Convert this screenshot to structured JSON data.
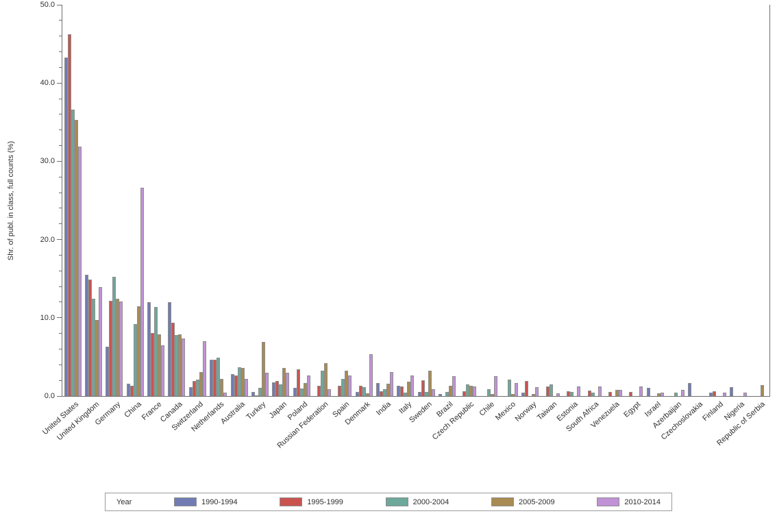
{
  "chart_data": {
    "type": "bar",
    "title": "",
    "xlabel": "",
    "ylabel": "Shr. of publ. in class, full counts (%)",
    "ylim": [
      0,
      50
    ],
    "grid": false,
    "legend_position": "bottom",
    "legend_title": "Year",
    "yticks": {
      "values": [
        0,
        10,
        20,
        30,
        40,
        50
      ],
      "labels": [
        "0.0",
        "10.0",
        "20.0",
        "30.0",
        "40.0",
        "50.0"
      ],
      "minor_step": 2
    },
    "categories": [
      "United States",
      "United Kingdom",
      "Germany",
      "China",
      "France",
      "Canada",
      "Switzerland",
      "Netherlands",
      "Australia",
      "Turkey",
      "Japan",
      "Poland",
      "Russian Federation",
      "Spain",
      "Denmark",
      "India",
      "Italy",
      "Sweden",
      "Brazil",
      "Czech Republic",
      "Chile",
      "Mexico",
      "Norway",
      "Taiwan",
      "Estonia",
      "South Africa",
      "Venezuela",
      "Egypt",
      "Israel",
      "Azerbaijan",
      "Czechoslovakia",
      "Finland",
      "Nigeria",
      "Republic of Serbia"
    ],
    "series": [
      {
        "name": "1990-1994",
        "color": "#717cb4",
        "values": [
          43.3,
          15.5,
          6.3,
          1.6,
          12.0,
          12.0,
          1.1,
          4.6,
          2.8,
          0.5,
          1.75,
          1.05,
          0,
          0,
          0.5,
          1.7,
          1.3,
          0.55,
          0.3,
          0,
          0,
          0,
          0.4,
          0,
          0,
          0,
          0,
          0,
          1.05,
          0,
          1.7,
          0.45,
          1.1,
          0
        ]
      },
      {
        "name": "1995-1999",
        "color": "#c9544f",
        "values": [
          46.2,
          14.9,
          12.2,
          1.3,
          8.1,
          9.4,
          1.9,
          4.6,
          2.6,
          0.1,
          1.95,
          3.4,
          1.3,
          1.3,
          1.3,
          0.6,
          1.2,
          2.0,
          0,
          0.6,
          0,
          0,
          1.9,
          1.2,
          0.6,
          0.7,
          0.55,
          0.55,
          0,
          0,
          0,
          0.65,
          0,
          0
        ]
      },
      {
        "name": "2000-2004",
        "color": "#6da89a",
        "values": [
          36.6,
          12.4,
          15.2,
          9.2,
          11.4,
          7.8,
          2.1,
          4.9,
          3.7,
          1.05,
          1.5,
          1.0,
          3.2,
          2.15,
          1.1,
          0.9,
          0.4,
          0.55,
          0.55,
          1.5,
          0.9,
          2.1,
          0,
          1.5,
          0.5,
          0.4,
          0,
          0,
          0,
          0.45,
          0,
          0,
          0,
          0
        ]
      },
      {
        "name": "2005-2009",
        "color": "#a98a52",
        "values": [
          35.3,
          9.7,
          12.4,
          11.5,
          7.9,
          7.9,
          3.1,
          2.2,
          3.6,
          6.9,
          3.6,
          1.7,
          4.2,
          3.25,
          0.35,
          1.6,
          1.8,
          3.25,
          1.35,
          1.3,
          0.3,
          0.3,
          0.3,
          0,
          0,
          0,
          0.8,
          0,
          0.35,
          0,
          0,
          0,
          0,
          1.4
        ]
      },
      {
        "name": "2010-2014",
        "color": "#c192d6",
        "values": [
          31.9,
          13.9,
          12.1,
          26.6,
          6.5,
          7.4,
          7.0,
          0.4,
          2.2,
          3.0,
          2.95,
          2.6,
          0.85,
          2.6,
          5.3,
          3.1,
          2.6,
          0.9,
          2.55,
          1.2,
          2.5,
          1.7,
          1.1,
          0.35,
          1.2,
          1.25,
          0.8,
          1.2,
          0.4,
          0.8,
          0,
          0.4,
          0.4,
          0
        ]
      }
    ]
  }
}
